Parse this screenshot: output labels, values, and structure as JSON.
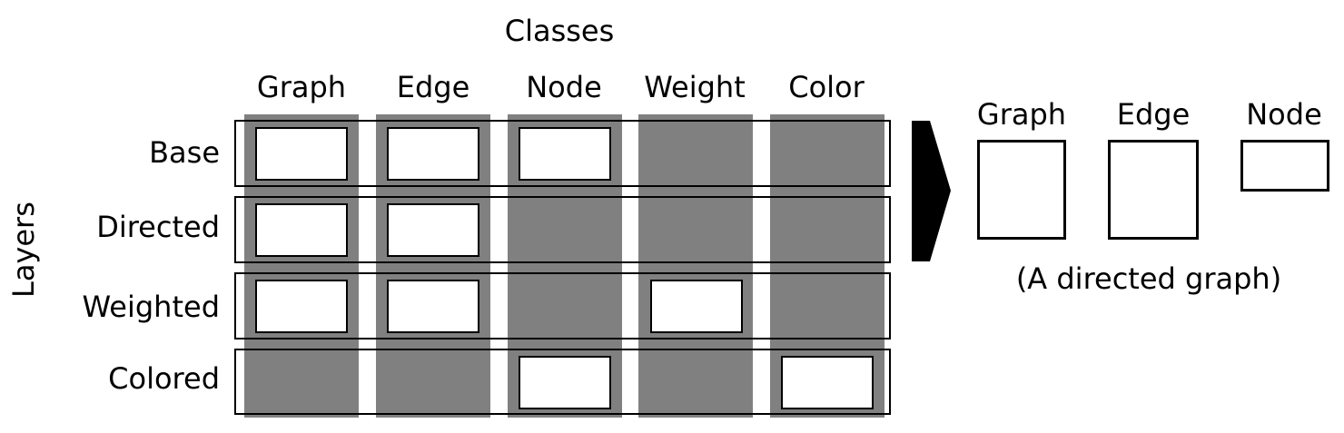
{
  "classes_title": "Classes",
  "layers_title": "Layers",
  "columns": [
    "Graph",
    "Edge",
    "Node",
    "Weight",
    "Color"
  ],
  "rows": [
    {
      "label": "Base",
      "present": [
        true,
        true,
        true,
        false,
        false
      ]
    },
    {
      "label": "Directed",
      "present": [
        true,
        true,
        false,
        false,
        false
      ]
    },
    {
      "label": "Weighted",
      "present": [
        true,
        true,
        false,
        true,
        false
      ]
    },
    {
      "label": "Colored",
      "present": [
        false,
        false,
        true,
        false,
        true
      ]
    }
  ],
  "result": {
    "classes": [
      "Graph",
      "Edge",
      "Node"
    ],
    "caption": "(A directed graph)"
  },
  "colors": {
    "column_fill": "#808080",
    "cell_fill": "#ffffff",
    "stroke": "#000000"
  }
}
